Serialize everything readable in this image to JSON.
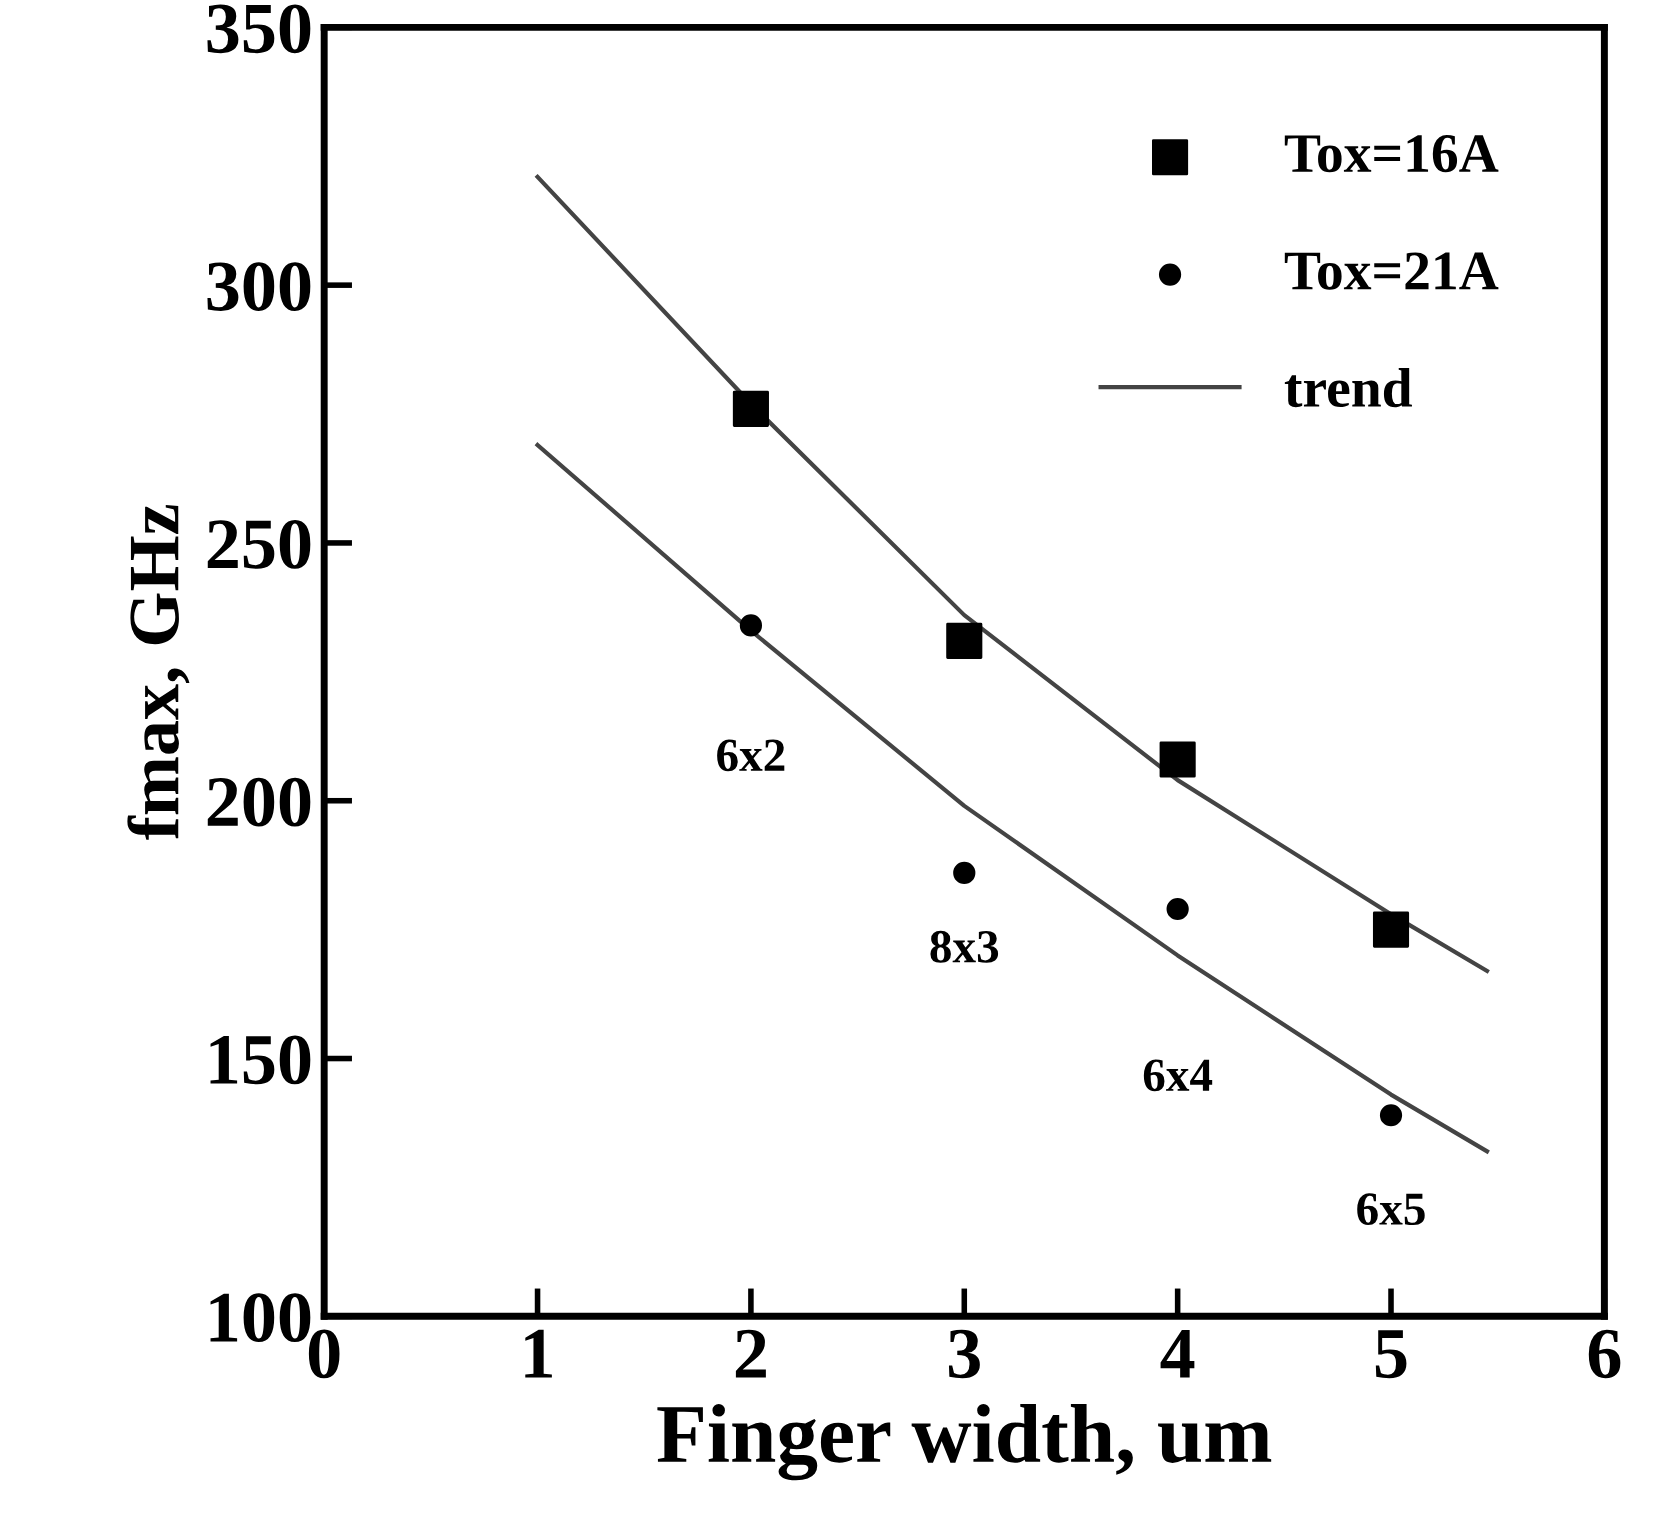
{
  "chart_data": {
    "type": "scatter",
    "xlabel": "Finger width, um",
    "ylabel": "fmax, GHz",
    "xlim": [
      0,
      6
    ],
    "xticks": [
      0,
      1,
      2,
      3,
      4,
      5,
      6
    ],
    "ylim": [
      100,
      350
    ],
    "yticks": [
      100,
      150,
      200,
      250,
      300,
      350
    ],
    "grid": false,
    "legend": "top right",
    "series": [
      {
        "name": "Tox=16A",
        "marker": "square",
        "color": "#000000",
        "x": [
          2,
          3,
          4,
          5
        ],
        "values": [
          276,
          231,
          208,
          175
        ]
      },
      {
        "name": "Tox=21A",
        "marker": "circle",
        "color": "#000000",
        "x": [
          2,
          3,
          4,
          5
        ],
        "values": [
          234,
          186,
          179,
          139
        ]
      },
      {
        "name": "trend",
        "type": "line",
        "marker": "none",
        "line_style": "solid",
        "color": "#444444",
        "x": [
          1,
          2,
          3,
          4,
          5,
          5.45
        ],
        "values": [
          321,
          277,
          236,
          204,
          178,
          167
        ]
      },
      {
        "type": "line",
        "marker": "none",
        "line_style": "solid",
        "color": "#444444",
        "x": [
          1,
          2,
          3,
          4,
          5,
          5.45
        ],
        "values": [
          269,
          233,
          199,
          170,
          143,
          132
        ]
      }
    ],
    "annotations": [
      {
        "text": "6x2",
        "x": 2,
        "y": 234
      },
      {
        "text": "8x3",
        "x": 3,
        "y": 186
      },
      {
        "text": "6x4",
        "x": 4,
        "y": 170
      },
      {
        "text": "6x5",
        "x": 5,
        "y": 139
      }
    ]
  }
}
